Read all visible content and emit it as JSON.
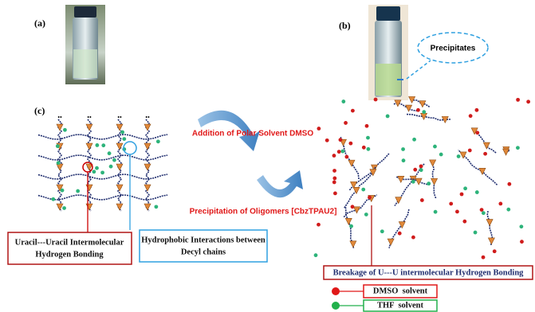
{
  "panels": {
    "a": "(a)",
    "b": "(b)",
    "c": "(c)"
  },
  "callout": "Precipitates",
  "arrows": {
    "top": "Addition of Polar Solvent DMSO",
    "bottom": "Precipitation of Oligomers [CbzTPAU2]"
  },
  "boxes": [
    {
      "lines": [
        "Uracil---Uracil Intermolecular",
        "Hydrogen Bonding"
      ]
    },
    {
      "lines": [
        "Hydrophobic Interactions between",
        "Decyl chains"
      ]
    }
  ],
  "breakage": "Breakage of U---U intermolecular Hydrogen Bonding",
  "legend": [
    {
      "label": "DMSO  solvent"
    },
    {
      "label": "THF  solvent"
    }
  ]
}
